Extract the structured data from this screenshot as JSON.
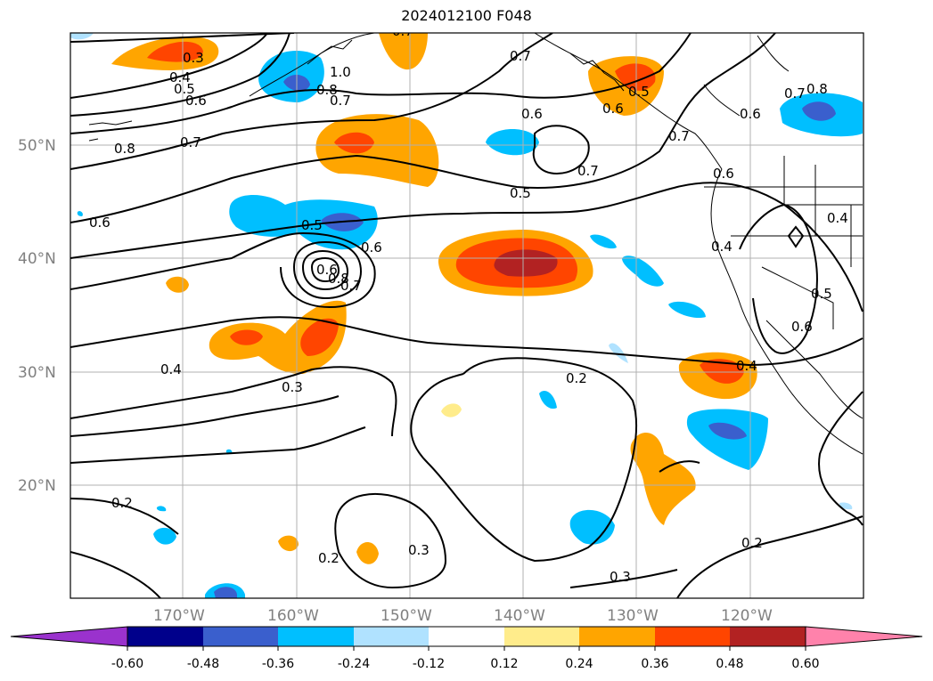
{
  "title": "2024012100 F048",
  "lat_labels": [
    "50°N",
    "40°N",
    "30°N",
    "20°N"
  ],
  "lon_labels": [
    "170°W",
    "160°W",
    "150°W",
    "140°W",
    "130°W",
    "120°W"
  ],
  "colorbar": {
    "ticks": [
      "-0.60",
      "-0.48",
      "-0.36",
      "-0.24",
      "-0.12",
      "0.12",
      "0.24",
      "0.36",
      "0.48",
      "0.60"
    ],
    "colors": [
      "#9a32cd",
      "#00008b",
      "#3a5fcd",
      "#00bfff",
      "#b0e2ff",
      "#ffffff",
      "#ffec8b",
      "#ffa500",
      "#ff4500",
      "#b22222",
      "#ff82ab"
    ]
  },
  "contour_labels": [
    "0.3",
    "0.4",
    "0.5",
    "0.6",
    "1.0",
    "0.8",
    "0.7",
    "0.7",
    "0.6",
    "0.5",
    "0.6",
    "0.7",
    "0.8",
    "0.7",
    "0.8",
    "0.6",
    "0.7",
    "0.6",
    "0.5",
    "0.7",
    "0.6",
    "0.5",
    "0.6",
    "0.6",
    "0.8",
    "0.7",
    "0.4",
    "0.4",
    "0.5",
    "0.6",
    "0.4",
    "0.4",
    "0.3",
    "0.2",
    "0.7",
    "0.2",
    "0.3",
    "0.2",
    "0.3",
    "0.2"
  ]
}
